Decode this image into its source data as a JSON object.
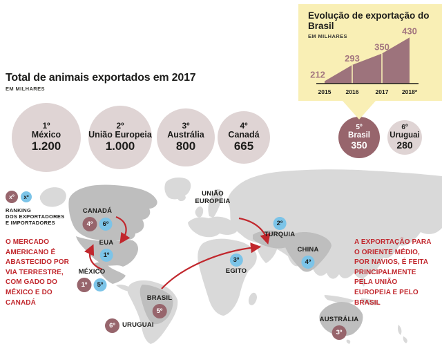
{
  "header": {
    "note": "header binds to chart_data.1 title/unit"
  },
  "panel_pointer": "points from panel to Brasil bubble",
  "chart_data": [
    {
      "type": "area",
      "title": "Evolução de exportação do Brasil",
      "unit": "EM MILHARES",
      "x": [
        "2015",
        "2016",
        "2017",
        "2018*"
      ],
      "values": [
        212,
        293,
        350,
        430
      ],
      "ylim": [
        200,
        440
      ],
      "grid": "white vertical separators at interior points",
      "legend_position": "none"
    },
    {
      "type": "bubble",
      "title": "Total de animais exportados em 2017",
      "unit": "EM MILHARES",
      "categories": [
        "México",
        "União Europeia",
        "Austrália",
        "Canadá",
        "Brasil",
        "Uruguai"
      ],
      "ranks": [
        "1º",
        "2º",
        "3º",
        "4º",
        "5º",
        "6º"
      ],
      "values": [
        1200,
        1000,
        800,
        665,
        350,
        280
      ],
      "value_labels": [
        "1.200",
        "1.000",
        "800",
        "665",
        "350",
        "280"
      ],
      "highlight_index": 4
    }
  ],
  "legend": {
    "exporter_badge": "xº",
    "importer_badge": "xº",
    "label": "RANKING\nDOS EXPORTADORES\nE IMPORTADORES"
  },
  "notes": {
    "left": "O MERCADO\nAMERICANO É\nABASTECIDO POR\nVIA TERRESTRE,\nCOM GADO DO\nMÉXICO E DO\nCANADÁ",
    "right": "A EXPORTAÇÃO PARA\nO ORIENTE MÉDIO,\nPOR NAVIOS, É FEITA\nPRINCIPALMENTE\nPELA UNIÃO\nEUROPEIA E PELO\nBRASIL"
  },
  "map_markers": [
    {
      "id": "canada",
      "label": "CANADÁ",
      "badges": [
        {
          "rank": "4º",
          "type": "exporter"
        },
        {
          "rank": "6º",
          "type": "importer"
        }
      ]
    },
    {
      "id": "eua",
      "label": "EUA",
      "badges": [
        {
          "rank": "1º",
          "type": "importer"
        }
      ]
    },
    {
      "id": "mexico",
      "label": "MÉXICO",
      "badges": [
        {
          "rank": "1º",
          "type": "exporter"
        },
        {
          "rank": "5º",
          "type": "importer"
        }
      ]
    },
    {
      "id": "brasil",
      "label": "BRASIL",
      "badges": [
        {
          "rank": "5º",
          "type": "exporter"
        }
      ]
    },
    {
      "id": "uruguai",
      "label": "URUGUAI",
      "badges": [
        {
          "rank": "6º",
          "type": "exporter"
        }
      ]
    },
    {
      "id": "uniao-europeia",
      "label": "UNIÃO\nEUROPEIA",
      "badges": []
    },
    {
      "id": "turquia",
      "label": "TURQUIA",
      "badges": [
        {
          "rank": "2º",
          "type": "importer"
        }
      ]
    },
    {
      "id": "egito",
      "label": "EGITO",
      "badges": [
        {
          "rank": "3º",
          "type": "importer"
        }
      ]
    },
    {
      "id": "china",
      "label": "CHINA",
      "badges": [
        {
          "rank": "4º",
          "type": "importer"
        }
      ]
    },
    {
      "id": "australia",
      "label": "AUSTRÁLIA",
      "badges": [
        {
          "rank": "3º",
          "type": "exporter"
        }
      ]
    }
  ],
  "colors": {
    "exporter": "#97656C",
    "importer": "#7CC4E8",
    "accent_red": "#C1272D",
    "panel_bg": "#F9EFB5",
    "chart_area": "#9D737C",
    "chart_value_label": "#A3767F",
    "bubble_bg": "#DFD4D4",
    "bubble_highlight": "#97656C",
    "map_land": "#D9D9D9",
    "map_highlight": "#BEBEBE",
    "text": "#1D1D1B"
  }
}
